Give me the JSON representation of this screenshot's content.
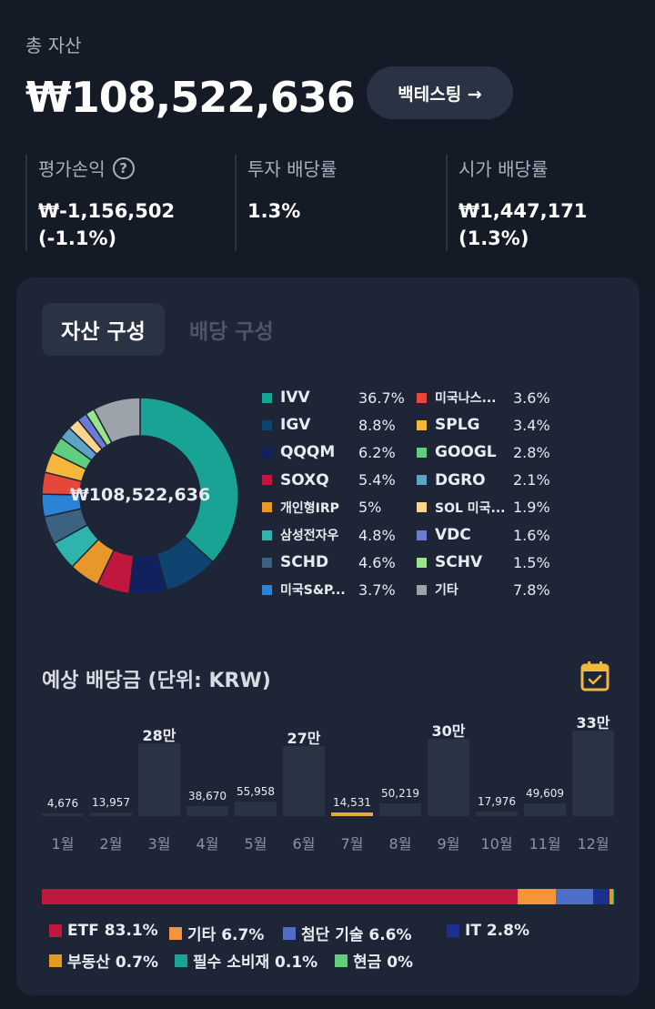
{
  "summary": {
    "total_label": "총 자산",
    "total_value": "₩108,522,636",
    "backtest_label": "백테스팅 →",
    "metrics": [
      {
        "label": "평가손익",
        "value": "₩-1,156,502\n(-1.1%)"
      },
      {
        "label": "투자 배당률",
        "value": "1.3%"
      },
      {
        "label": "시가 배당률",
        "value": "₩1,447,171 (1.3%)"
      }
    ]
  },
  "tabs": {
    "active": "자산 구성",
    "inactive": "배당 구성"
  },
  "composition": {
    "center_label": "₩108,522,636",
    "holdings": [
      {
        "name": "IVV",
        "pct": "36.7%",
        "value": 36.7,
        "color": "#19a394"
      },
      {
        "name": "IGV",
        "pct": "8.8%",
        "value": 8.8,
        "color": "#0f4370"
      },
      {
        "name": "QQQM",
        "pct": "6.2%",
        "value": 6.2,
        "color": "#11215e"
      },
      {
        "name": "SOXQ",
        "pct": "5.4%",
        "value": 5.4,
        "color": "#c0173f"
      },
      {
        "name": "개인형IRP",
        "pct": "5%",
        "value": 5.0,
        "color": "#e8972a"
      },
      {
        "name": "삼성전자우",
        "pct": "4.8%",
        "value": 4.8,
        "color": "#2fb3ad"
      },
      {
        "name": "SCHD",
        "pct": "4.6%",
        "value": 4.6,
        "color": "#3d6280"
      },
      {
        "name": "미국S&P...",
        "pct": "3.7%",
        "value": 3.7,
        "color": "#2a83d6"
      },
      {
        "name": "미국나스...",
        "pct": "3.6%",
        "value": 3.6,
        "color": "#e5473b"
      },
      {
        "name": "SPLG",
        "pct": "3.4%",
        "value": 3.4,
        "color": "#f3b73b"
      },
      {
        "name": "GOOGL",
        "pct": "2.8%",
        "value": 2.8,
        "color": "#5fcf7f"
      },
      {
        "name": "DGRO",
        "pct": "2.1%",
        "value": 2.1,
        "color": "#5da4c7"
      },
      {
        "name": "SOL 미국...",
        "pct": "1.9%",
        "value": 1.9,
        "color": "#fbd58e"
      },
      {
        "name": "VDC",
        "pct": "1.6%",
        "value": 1.6,
        "color": "#6a7bd3"
      },
      {
        "name": "SCHV",
        "pct": "1.5%",
        "value": 1.5,
        "color": "#9ce48c"
      },
      {
        "name": "기타",
        "pct": "7.8%",
        "value": 7.8,
        "color": "#9da3ab"
      }
    ]
  },
  "dividends": {
    "title": "예상 배당금 (단위: KRW)",
    "months": [
      {
        "month": "1월",
        "label": "4,676",
        "value": 4676
      },
      {
        "month": "2월",
        "label": "13,957",
        "value": 13957
      },
      {
        "month": "3월",
        "label": "28만",
        "value": 280000
      },
      {
        "month": "4월",
        "label": "38,670",
        "value": 38670
      },
      {
        "month": "5월",
        "label": "55,958",
        "value": 55958
      },
      {
        "month": "6월",
        "label": "27만",
        "value": 270000
      },
      {
        "month": "7월",
        "label": "14,531",
        "value": 14531
      },
      {
        "month": "8월",
        "label": "50,219",
        "value": 50219
      },
      {
        "month": "9월",
        "label": "30만",
        "value": 300000
      },
      {
        "month": "10월",
        "label": "17,976",
        "value": 17976
      },
      {
        "month": "11월",
        "label": "49,609",
        "value": 49609
      },
      {
        "month": "12월",
        "label": "33만",
        "value": 330000
      }
    ]
  },
  "categories": [
    {
      "name": "ETF",
      "pct": "83.1%",
      "value": 83.1,
      "color": "#c0173f"
    },
    {
      "name": "기타",
      "pct": "6.7%",
      "value": 6.7,
      "color": "#f5943a"
    },
    {
      "name": "첨단 기술",
      "pct": "6.6%",
      "value": 6.6,
      "color": "#4f6ec9"
    },
    {
      "name": "IT",
      "pct": "2.8%",
      "value": 2.8,
      "color": "#1d2f8f"
    },
    {
      "name": "부동산",
      "pct": "0.7%",
      "value": 0.7,
      "color": "#e39a22"
    },
    {
      "name": "필수 소비재",
      "pct": "0.1%",
      "value": 0.1,
      "color": "#19a394"
    },
    {
      "name": "현금",
      "pct": "0%",
      "value": 0.0,
      "color": "#5fcf7f"
    }
  ]
}
